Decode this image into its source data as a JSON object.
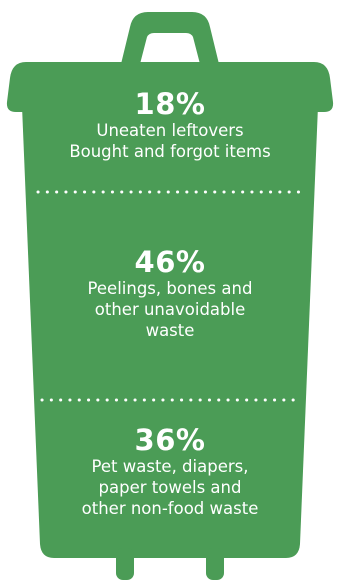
{
  "colors": {
    "bin": "#4b9c56",
    "text": "#ffffff",
    "background": "#ffffff"
  },
  "chart_data": {
    "type": "bar",
    "categories": [
      "Uneaten leftovers\nBought and forgot items",
      "Peelings, bones and other unavoidable waste",
      "Pet waste, diapers, paper towels and other non-food waste"
    ],
    "values": [
      18,
      46,
      36
    ],
    "unit": "%"
  },
  "segments": [
    {
      "percent_label": "18%",
      "lines": [
        "Uneaten leftovers",
        "Bought and forgot items"
      ]
    },
    {
      "percent_label": "46%",
      "lines": [
        "Peelings, bones and",
        "other unavoidable",
        "waste"
      ]
    },
    {
      "percent_label": "36%",
      "lines": [
        "Pet waste, diapers,",
        "paper towels and",
        "other non-food waste"
      ]
    }
  ]
}
